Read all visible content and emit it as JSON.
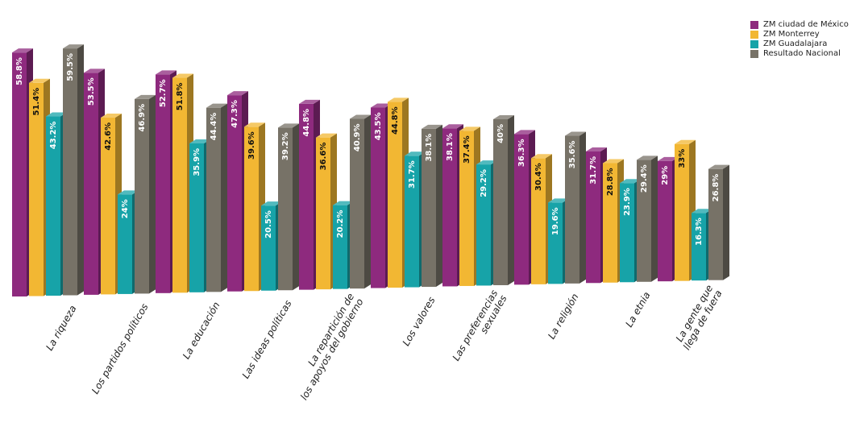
{
  "chart_data": {
    "type": "bar",
    "categories": [
      [
        "La riqueza"
      ],
      [
        "Los partidos políticos"
      ],
      [
        "La educación"
      ],
      [
        "Las ideas políticas"
      ],
      [
        "La repartición de",
        "los apoyos del gobierno"
      ],
      [
        "Los valores"
      ],
      [
        "Las preferencias",
        "sexuales"
      ],
      [
        "La religión"
      ],
      [
        "La etnia"
      ],
      [
        "La gente que",
        "llega de fuera"
      ]
    ],
    "series": [
      {
        "name": "ZM ciudad de México",
        "color": "#8e2a7e",
        "values": [
          58.8,
          53.5,
          52.7,
          47.3,
          44.8,
          43.5,
          38.1,
          36.3,
          31.7,
          29
        ],
        "labels": [
          "58.8%",
          "53.5%",
          "52.7%",
          "47.3%",
          "44.8%",
          "43.5%",
          "38.1%",
          "36.3%",
          "31.7%",
          "29%"
        ]
      },
      {
        "name": "ZM Monterrey",
        "color": "#f2b733",
        "values": [
          51.4,
          42.6,
          51.8,
          39.6,
          36.6,
          44.8,
          37.4,
          30.4,
          28.8,
          33
        ],
        "labels": [
          "51.4%",
          "42.6%",
          "51.8%",
          "39.6%",
          "36.6%",
          "44.8%",
          "37.4%",
          "30.4%",
          "28.8%",
          "33%"
        ]
      },
      {
        "name": "ZM Guadalajara",
        "color": "#17a3a8",
        "values": [
          43.2,
          24,
          35.9,
          20.5,
          20.2,
          31.7,
          29.2,
          19.6,
          23.9,
          16.3
        ],
        "labels": [
          "43.2%",
          "24%",
          "35.9%",
          "20.5%",
          "20.2%",
          "31.7%",
          "29.2%",
          "19.6%",
          "23.9%",
          "16.3%"
        ]
      },
      {
        "name": "Resultado Nacional",
        "color": "#777267",
        "values": [
          59.5,
          46.9,
          44.4,
          39.2,
          40.9,
          38.1,
          40,
          35.6,
          29.4,
          26.8
        ],
        "labels": [
          "59.5%",
          "46.9%",
          "44.4%",
          "39.2%",
          "40.9%",
          "38.1%",
          "40%",
          "35.6%",
          "29.4%",
          "26.8%"
        ]
      }
    ],
    "legend": "top-right",
    "grid": false
  }
}
